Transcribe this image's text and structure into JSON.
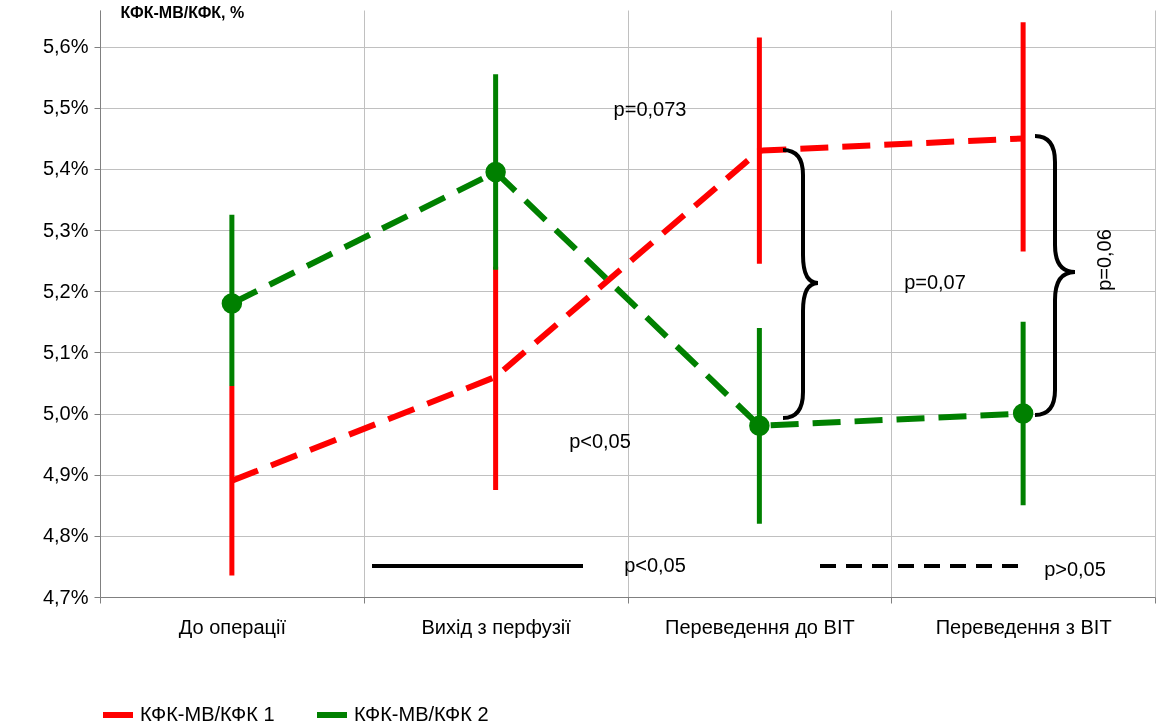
{
  "chart_data": {
    "type": "line",
    "ylabel": "КФК-МВ/КФК, %",
    "categories": [
      "До операції",
      "Вихід з перфузії",
      "Переведення до ВІТ",
      "Переведення з ВІТ"
    ],
    "series": [
      {
        "name": "КФК-МВ/КФК 1",
        "color": "#ff0000",
        "marker": "none",
        "values": [
          4.89,
          5.06,
          5.43,
          5.45
        ],
        "errors": [
          [
            4.735,
            5.045
          ],
          [
            4.875,
            5.24
          ],
          [
            5.245,
            5.615
          ],
          [
            5.265,
            5.64
          ]
        ]
      },
      {
        "name": "КФК-МВ/КФК 2",
        "color": "#008000",
        "marker": "circle",
        "values": [
          5.18,
          5.395,
          4.98,
          5.0
        ],
        "errors": [
          [
            5.045,
            5.325
          ],
          [
            5.235,
            5.555
          ],
          [
            4.82,
            5.14
          ],
          [
            4.85,
            5.15
          ]
        ]
      }
    ],
    "line_style": "dashed",
    "ylim": [
      4.7,
      5.66
    ],
    "yticks": [
      {
        "value": 4.7,
        "label": "4,7%"
      },
      {
        "value": 4.8,
        "label": "4,8%"
      },
      {
        "value": 4.9,
        "label": "4,9%"
      },
      {
        "value": 5.0,
        "label": "5,0%"
      },
      {
        "value": 5.1,
        "label": "5,1%"
      },
      {
        "value": 5.2,
        "label": "5,2%"
      },
      {
        "value": 5.3,
        "label": "5,3%"
      },
      {
        "value": 5.4,
        "label": "5,4%"
      },
      {
        "value": 5.5,
        "label": "5,5%"
      },
      {
        "value": 5.6,
        "label": "5,6%"
      }
    ],
    "grid": true,
    "legend": "bottom",
    "annotations": [
      "p=0,073",
      "p<0,05",
      "p=0,07",
      "p=0,06",
      "p<0,05",
      "p>0,05"
    ]
  }
}
